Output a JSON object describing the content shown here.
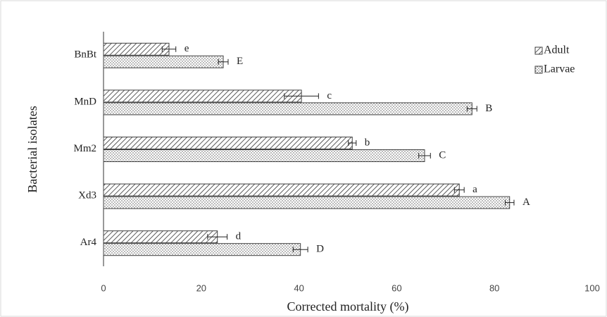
{
  "chart_data": {
    "type": "hbar",
    "categories": [
      "BnBt",
      "MnD",
      "Mm2",
      "Xd3",
      "Ar4"
    ],
    "series": [
      {
        "name": "Adult",
        "pattern": "hatch",
        "color": "#404040",
        "values": [
          13.4,
          40.5,
          50.9,
          72.8,
          23.3
        ],
        "errors": [
          1.4,
          3.5,
          0.8,
          1.0,
          2.0
        ],
        "letters": [
          "e",
          "c",
          "b",
          "a",
          "d"
        ]
      },
      {
        "name": "Larvae",
        "pattern": "dots",
        "color": "#404040",
        "values": [
          24.5,
          75.4,
          65.7,
          83.1,
          40.3
        ],
        "errors": [
          1.0,
          1.0,
          1.2,
          0.9,
          1.5
        ],
        "letters": [
          "E",
          "B",
          "C",
          "A",
          "D"
        ]
      }
    ],
    "xlabel": "Corrected mortality (%)",
    "ylabel": "Bacterial isolates",
    "xlim": [
      0,
      100
    ],
    "xticks": [
      0,
      20,
      40,
      60,
      80,
      100
    ],
    "grid": false,
    "legend": "upper right"
  }
}
